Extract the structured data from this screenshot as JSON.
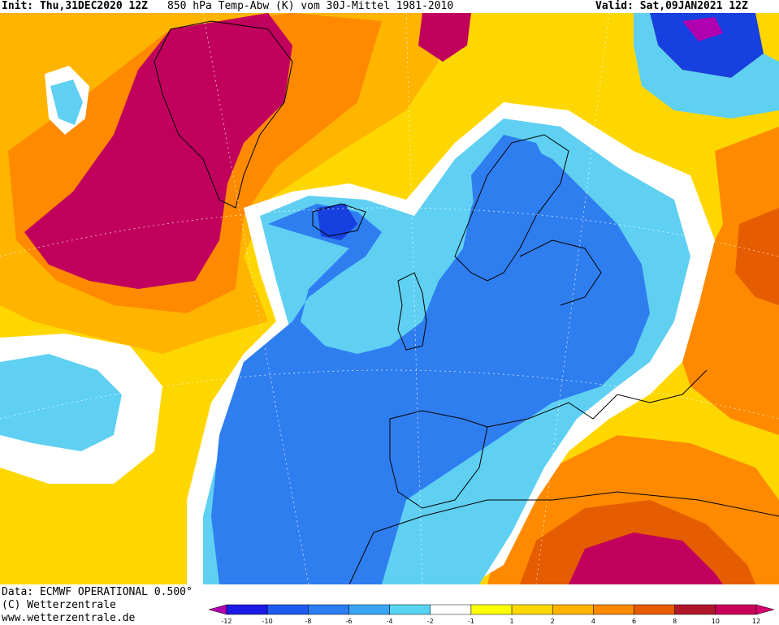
{
  "header": {
    "init": "Init: Thu,31DEC2020 12Z",
    "parameter": "850 hPa Temp-Abw (K) vom 30J-Mittel 1981-2010",
    "valid": "Valid: Sat,09JAN2021 12Z"
  },
  "footer": {
    "data_source": "Data: ECMWF OPERATIONAL 0.500°",
    "copyright": "(C) Wetterzentrale",
    "website": "www.wetterzentrale.de"
  },
  "legend": {
    "tick_labels": [
      "-12",
      "-10",
      "-8",
      "-6",
      "-4",
      "-2",
      "-1",
      "1",
      "2",
      "4",
      "6",
      "8",
      "10",
      "12"
    ],
    "colors": [
      "#b000b0",
      "#1a1ae6",
      "#1e5aef",
      "#2a7df2",
      "#3aa6f4",
      "#57d4f2",
      "#ffffff",
      "#ffff00",
      "#ffd700",
      "#ffb400",
      "#ff8a00",
      "#e65c00",
      "#b0182a",
      "#c8005a",
      "#d6006c"
    ]
  },
  "map_palette": {
    "background": "#ffd700",
    "warm_deep": "#c0005c",
    "warm_orange": "#ff8a00",
    "cold_cyan": "#5fd0f2",
    "cold_blue": "#2f7ef0",
    "cold_deep": "#1640e0",
    "neutral": "#ffffff"
  }
}
